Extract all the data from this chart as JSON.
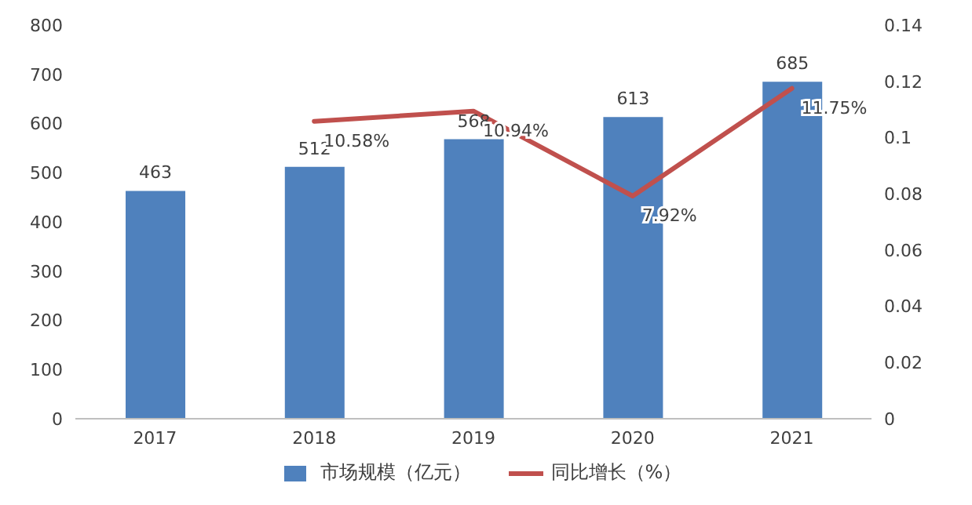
{
  "chart_data": {
    "type": "bar",
    "categories": [
      "2017",
      "2018",
      "2019",
      "2020",
      "2021"
    ],
    "series": [
      {
        "name": "市场规模（亿元）",
        "color": "#4f81bd",
        "values": [
          463,
          512,
          568,
          613,
          685
        ],
        "value_labels": [
          "463",
          "512",
          "568",
          "613",
          "685"
        ]
      },
      {
        "name": "同比增长（%）",
        "type": "line",
        "axis": "y2",
        "color": "#c0504d",
        "values": [
          null,
          0.1058,
          0.1094,
          0.0792,
          0.1175
        ],
        "value_labels": [
          null,
          "10.58%",
          "10.94%",
          "7.92%",
          "11.75%"
        ]
      }
    ],
    "ylim": [
      0,
      800
    ],
    "yticks": [
      0,
      100,
      200,
      300,
      400,
      500,
      600,
      700,
      800
    ],
    "y2lim": [
      0,
      0.14
    ],
    "y2ticks": [
      0,
      0.02,
      0.04,
      0.06,
      0.08,
      0.1,
      0.12,
      0.14
    ],
    "grid": false,
    "legend": "bottom"
  }
}
